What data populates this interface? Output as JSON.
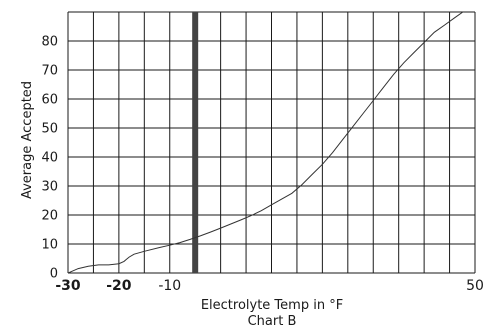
{
  "chart_data": {
    "type": "line",
    "xlabel": "Electrolyte Temp in °F",
    "ylabel": "Average Accepted",
    "caption": "Chart B",
    "xlim": [
      -30,
      50
    ],
    "ylim": [
      0,
      90
    ],
    "xticks": [
      {
        "value": -30,
        "label": "-30",
        "bold": true
      },
      {
        "value": -20,
        "label": "-20",
        "bold": true
      },
      {
        "value": -10,
        "label": "-10",
        "bold": false
      },
      {
        "value": 50,
        "label": "50",
        "bold": false
      }
    ],
    "yticks": [
      0,
      10,
      20,
      30,
      40,
      50,
      60,
      70,
      80
    ],
    "x_gridlines": [
      -30,
      -25,
      -20,
      -15,
      -10,
      -5,
      0,
      5,
      10,
      15,
      20,
      25,
      30,
      35,
      40,
      45,
      50
    ],
    "y_gridlines": [
      0,
      10,
      20,
      30,
      40,
      50,
      60,
      70,
      80,
      90
    ],
    "grid": true,
    "highlight_line_x": -5,
    "series": [
      {
        "x": [
          -30,
          -28,
          -26,
          -24,
          -22,
          -20,
          -19,
          -18,
          -17,
          -15,
          -12,
          -10,
          -8,
          -6,
          -4,
          -2,
          0,
          2,
          4,
          6,
          8,
          10,
          12,
          14,
          16,
          18,
          20,
          22,
          24,
          26,
          28,
          30,
          32,
          34,
          36,
          38,
          40,
          42,
          44,
          46,
          48,
          50
        ],
        "y": [
          0,
          1.5,
          2.3,
          2.8,
          2.8,
          3.2,
          4.0,
          5.5,
          6.5,
          7.5,
          8.8,
          9.6,
          10.5,
          11.6,
          12.8,
          14.1,
          15.5,
          16.9,
          18.3,
          19.8,
          21.5,
          23.5,
          25.5,
          27.5,
          30.5,
          34.0,
          37.5,
          41.5,
          46.0,
          50.5,
          55.0,
          59.5,
          64.0,
          68.5,
          72.5,
          76.0,
          79.5,
          83.0,
          85.5,
          88.0,
          90.5,
          93.0
        ]
      }
    ],
    "colors": {
      "line": "#333333",
      "grid": "#1a1a1a",
      "highlight": "#444444"
    }
  }
}
